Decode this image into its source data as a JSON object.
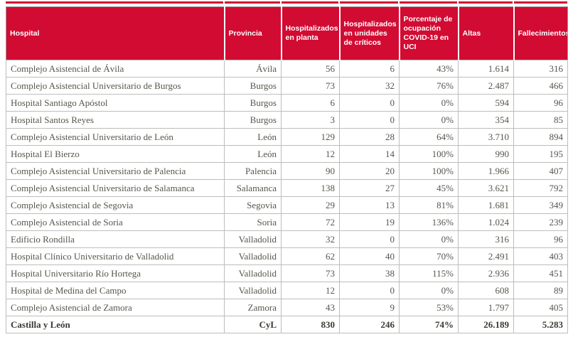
{
  "colors": {
    "header_bg": "#d20b33",
    "header_text": "#ffffff",
    "body_text": "#56564e",
    "total_text": "#3b3b33",
    "grid_border": "#bdbdbd"
  },
  "chart_data": {
    "type": "table",
    "title": "",
    "columns": [
      "Hospital",
      "Provincia",
      "Hospitalizados en planta",
      "Hospitalizados en unidades de críticos",
      "Porcentaje de ocupación COVID-19 en UCI",
      "Altas",
      "Fallecimientos"
    ],
    "column_keys": [
      "hospital",
      "provincia",
      "hospitalizados-planta",
      "hospitalizados-criticos",
      "ocupacion-covid-uci",
      "altas",
      "fallecimientos"
    ],
    "rows": [
      [
        "Complejo Asistencial de Ávila",
        "Ávila",
        "56",
        "6",
        "43%",
        "1.614",
        "316"
      ],
      [
        "Complejo Asistencial Universitario de Burgos",
        "Burgos",
        "73",
        "32",
        "76%",
        "2.487",
        "466"
      ],
      [
        "Hospital Santiago Apóstol",
        "Burgos",
        "6",
        "0",
        "0%",
        "594",
        "96"
      ],
      [
        "Hospital Santos Reyes",
        "Burgos",
        "3",
        "0",
        "0%",
        "354",
        "85"
      ],
      [
        "Complejo Asistencial Universitario de León",
        "León",
        "129",
        "28",
        "64%",
        "3.710",
        "894"
      ],
      [
        "Hospital El Bierzo",
        "León",
        "12",
        "14",
        "100%",
        "990",
        "195"
      ],
      [
        "Complejo Asistencial Universitario de Palencia",
        "Palencia",
        "90",
        "20",
        "100%",
        "1.966",
        "407"
      ],
      [
        "Complejo Asistencial Universitario de Salamanca",
        "Salamanca",
        "138",
        "27",
        "45%",
        "3.621",
        "792"
      ],
      [
        "Complejo Asistencial de Segovia",
        "Segovia",
        "29",
        "13",
        "81%",
        "1.681",
        "349"
      ],
      [
        "Complejo Asistencial de Soria",
        "Soria",
        "72",
        "19",
        "136%",
        "1.024",
        "239"
      ],
      [
        "Edificio Rondilla",
        "Valladolid",
        "32",
        "0",
        "0%",
        "316",
        "96"
      ],
      [
        "Hospital Clínico Universitario de Valladolid",
        "Valladolid",
        "62",
        "40",
        "70%",
        "2.491",
        "403"
      ],
      [
        "Hospital Universitario Río Hortega",
        "Valladolid",
        "73",
        "38",
        "115%",
        "2.936",
        "451"
      ],
      [
        "Hospital de Medina del Campo",
        "Valladolid",
        "12",
        "0",
        "0%",
        "608",
        "89"
      ],
      [
        "Complejo Asistencial de Zamora",
        "Zamora",
        "43",
        "9",
        "53%",
        "1.797",
        "405"
      ]
    ],
    "total_row": [
      "Castilla y León",
      "CyL",
      "830",
      "246",
      "74%",
      "26.189",
      "5.283"
    ]
  }
}
